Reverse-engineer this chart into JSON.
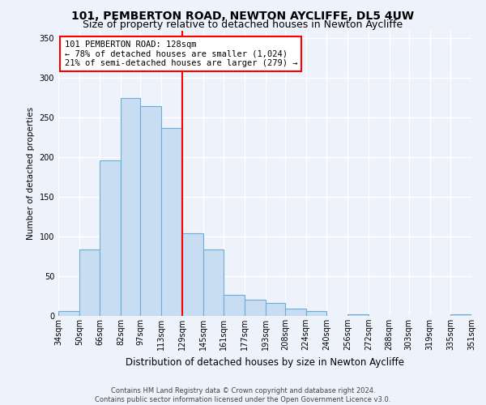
{
  "title1": "101, PEMBERTON ROAD, NEWTON AYCLIFFE, DL5 4UW",
  "title2": "Size of property relative to detached houses in Newton Aycliffe",
  "xlabel": "Distribution of detached houses by size in Newton Aycliffe",
  "ylabel": "Number of detached properties",
  "bin_labels": [
    "34sqm",
    "50sqm",
    "66sqm",
    "82sqm",
    "97sqm",
    "113sqm",
    "129sqm",
    "145sqm",
    "161sqm",
    "177sqm",
    "193sqm",
    "208sqm",
    "224sqm",
    "240sqm",
    "256sqm",
    "272sqm",
    "288sqm",
    "303sqm",
    "319sqm",
    "335sqm",
    "351sqm"
  ],
  "bar_heights": [
    6,
    84,
    196,
    275,
    265,
    237,
    104,
    84,
    27,
    20,
    16,
    9,
    6,
    0,
    2,
    0,
    0,
    0,
    0,
    2
  ],
  "bin_edges": [
    34,
    50,
    66,
    82,
    97,
    113,
    129,
    145,
    161,
    177,
    193,
    208,
    224,
    240,
    256,
    272,
    288,
    303,
    319,
    335,
    351
  ],
  "bar_color": "#c9ddf2",
  "bar_edge_color": "#6aaed6",
  "vline_x": 129,
  "vline_color": "red",
  "annotation_title": "101 PEMBERTON ROAD: 128sqm",
  "annotation_line1": "← 78% of detached houses are smaller (1,024)",
  "annotation_line2": "21% of semi-detached houses are larger (279) →",
  "annotation_box_color": "white",
  "annotation_box_edge": "red",
  "ylim": [
    0,
    360
  ],
  "yticks": [
    0,
    50,
    100,
    150,
    200,
    250,
    300,
    350
  ],
  "footer1": "Contains HM Land Registry data © Crown copyright and database right 2024.",
  "footer2": "Contains public sector information licensed under the Open Government Licence v3.0.",
  "background_color": "#eef2fa",
  "grid_color": "white",
  "title1_fontsize": 10,
  "title2_fontsize": 9,
  "xlabel_fontsize": 8.5,
  "ylabel_fontsize": 7.5,
  "tick_fontsize": 7,
  "footer_fontsize": 6
}
